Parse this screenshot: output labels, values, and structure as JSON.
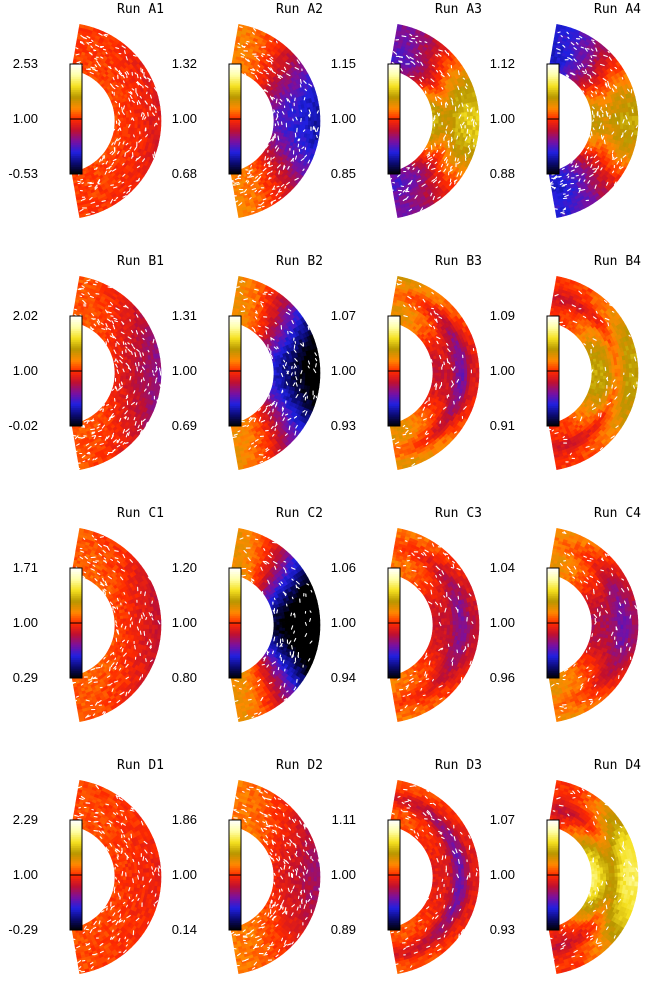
{
  "palette": {
    "colorbar_stops": [
      "#000000",
      "#0a0a70",
      "#2020e0",
      "#7a10a0",
      "#c01030",
      "#ff2a00",
      "#ff8a00",
      "#b89600",
      "#f5e020",
      "#ffffa8",
      "#ffffff"
    ],
    "speckle": "#ffffff"
  },
  "chart_data": [
    {
      "type": "heatmap",
      "title": "Run A1",
      "cbar_ticks": [
        "2.53",
        "1.00",
        "-0.53"
      ],
      "cbar_range": [
        -0.53,
        2.53
      ],
      "field": {
        "base": 1.06,
        "equator": -0.1,
        "band_mid": 0.0,
        "band_center": 0.0,
        "band_width": 0.3,
        "tilt": -0.35
      },
      "speckle": 0.85
    },
    {
      "type": "heatmap",
      "title": "Run A2",
      "cbar_ticks": [
        "1.32",
        "1.00",
        "0.68"
      ],
      "cbar_range": [
        0.68,
        1.32
      ],
      "field": {
        "base": 1.06,
        "equator": -0.25,
        "band_mid": 0.0,
        "band_center": 0.0,
        "band_width": 0.3,
        "tilt": -0.55
      },
      "speckle": 0.8
    },
    {
      "type": "heatmap",
      "title": "Run A3",
      "cbar_ticks": [
        "1.15",
        "1.00",
        "0.85"
      ],
      "cbar_range": [
        0.85,
        1.15
      ],
      "field": {
        "base": 0.94,
        "equator": 0.14,
        "band_mid": -0.04,
        "band_center": 0.3,
        "band_width": 0.22,
        "tilt": 0.1
      },
      "speckle": 0.7
    },
    {
      "type": "heatmap",
      "title": "Run A4",
      "cbar_ticks": [
        "1.12",
        "1.00",
        "0.88"
      ],
      "cbar_range": [
        0.88,
        1.12
      ],
      "field": {
        "base": 0.93,
        "equator": 0.12,
        "band_mid": -0.02,
        "band_center": 0.35,
        "band_width": 0.22,
        "tilt": 0.1
      },
      "speckle": 0.7
    },
    {
      "type": "heatmap",
      "title": "Run B1",
      "cbar_ticks": [
        "2.02",
        "1.00",
        "-0.02"
      ],
      "cbar_range": [
        -0.02,
        2.02
      ],
      "field": {
        "base": 1.08,
        "equator": -0.3,
        "band_mid": 0.0,
        "band_center": 0.0,
        "band_width": 0.3,
        "tilt": -0.65
      },
      "speckle": 0.85
    },
    {
      "type": "heatmap",
      "title": "Run B2",
      "cbar_ticks": [
        "1.31",
        "1.00",
        "0.69"
      ],
      "cbar_range": [
        0.69,
        1.31
      ],
      "field": {
        "base": 1.07,
        "equator": -0.35,
        "band_mid": 0.0,
        "band_center": 0.0,
        "band_width": 0.3,
        "tilt": -1.05
      },
      "speckle": 0.55
    },
    {
      "type": "heatmap",
      "title": "Run B3",
      "cbar_ticks": [
        "1.07",
        "1.00",
        "0.93"
      ],
      "cbar_range": [
        0.93,
        1.07
      ],
      "field": {
        "base": 1.02,
        "equator": -0.03,
        "band_mid": -0.07,
        "band_center": 0.62,
        "band_width": 0.18,
        "tilt": 0.2
      },
      "speckle": 0.3
    },
    {
      "type": "heatmap",
      "title": "Run B4",
      "cbar_ticks": [
        "1.09",
        "1.00",
        "0.91"
      ],
      "cbar_range": [
        0.91,
        1.09
      ],
      "field": {
        "base": 1.0,
        "equator": 0.04,
        "band_mid": -0.06,
        "band_center": 0.55,
        "band_width": 0.16,
        "tilt": 0.0
      },
      "speckle": 0.25
    },
    {
      "type": "heatmap",
      "title": "Run C1",
      "cbar_ticks": [
        "1.71",
        "1.00",
        "0.29"
      ],
      "cbar_range": [
        0.29,
        1.71
      ],
      "field": {
        "base": 1.07,
        "equator": -0.12,
        "band_mid": 0.0,
        "band_center": 0.0,
        "band_width": 0.3,
        "tilt": -0.55
      },
      "speckle": 0.6
    },
    {
      "type": "heatmap",
      "title": "Run C2",
      "cbar_ticks": [
        "1.20",
        "1.00",
        "0.80"
      ],
      "cbar_range": [
        0.8,
        1.2
      ],
      "field": {
        "base": 1.05,
        "equator": -0.28,
        "band_mid": 0.0,
        "band_center": 0.0,
        "band_width": 0.3,
        "tilt": -1.05
      },
      "speckle": 0.45
    },
    {
      "type": "heatmap",
      "title": "Run C3",
      "cbar_ticks": [
        "1.06",
        "1.00",
        "0.94"
      ],
      "cbar_range": [
        0.94,
        1.06
      ],
      "field": {
        "base": 1.01,
        "equator": -0.02,
        "band_mid": -0.05,
        "band_center": 0.62,
        "band_width": 0.2,
        "tilt": 0.0
      },
      "speckle": 0.35
    },
    {
      "type": "heatmap",
      "title": "Run C4",
      "cbar_ticks": [
        "1.04",
        "1.00",
        "0.96"
      ],
      "cbar_range": [
        0.96,
        1.04
      ],
      "field": {
        "base": 1.01,
        "equator": -0.02,
        "band_mid": -0.04,
        "band_center": 0.68,
        "band_width": 0.2,
        "tilt": 0.0
      },
      "speckle": 0.35
    },
    {
      "type": "heatmap",
      "title": "Run D1",
      "cbar_ticks": [
        "2.29",
        "1.00",
        "-0.29"
      ],
      "cbar_range": [
        -0.29,
        2.29
      ],
      "field": {
        "base": 1.08,
        "equator": -0.1,
        "band_mid": 0.0,
        "band_center": 0.0,
        "band_width": 0.3,
        "tilt": -0.2
      },
      "speckle": 0.65
    },
    {
      "type": "heatmap",
      "title": "Run D2",
      "cbar_ticks": [
        "1.86",
        "1.00",
        "0.14"
      ],
      "cbar_range": [
        0.14,
        1.86
      ],
      "field": {
        "base": 1.14,
        "equator": -0.3,
        "band_mid": 0.0,
        "band_center": 0.0,
        "band_width": 0.3,
        "tilt": -0.55
      },
      "speckle": 0.85
    },
    {
      "type": "heatmap",
      "title": "Run D3",
      "cbar_ticks": [
        "1.11",
        "1.00",
        "0.89"
      ],
      "cbar_range": [
        0.89,
        1.11
      ],
      "field": {
        "base": 1.01,
        "equator": -0.02,
        "band_mid": -0.08,
        "band_center": 0.6,
        "band_width": 0.18,
        "tilt": 0.0
      },
      "speckle": 0.4
    },
    {
      "type": "heatmap",
      "title": "Run D4",
      "cbar_ticks": [
        "1.07",
        "1.00",
        "0.93"
      ],
      "cbar_range": [
        0.93,
        1.07
      ],
      "field": {
        "base": 1.0,
        "equator": 0.05,
        "band_mid": -0.07,
        "band_center": 0.42,
        "band_width": 0.22,
        "tilt": 0.0
      },
      "speckle": 0.3
    }
  ]
}
